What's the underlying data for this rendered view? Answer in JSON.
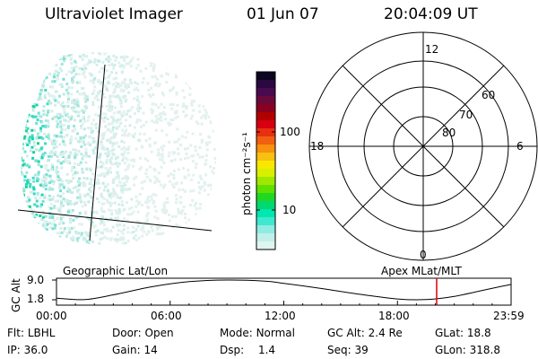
{
  "header": {
    "instrument": "Ultraviolet Imager",
    "date": "01 Jun 07",
    "time": "20:04:09 UT"
  },
  "colorbar": {
    "label": "photon cm⁻²s⁻¹",
    "ticks": [
      "100",
      "10"
    ],
    "colors": [
      "#0c0420",
      "#2a0840",
      "#4a0a50",
      "#6a0a3a",
      "#8a0020",
      "#b00000",
      "#d80010",
      "#e83010",
      "#f06010",
      "#f89010",
      "#f8c010",
      "#f8e800",
      "#d8f000",
      "#a0e800",
      "#60e000",
      "#20d820",
      "#00d870",
      "#00e8b0",
      "#40e8d0",
      "#90ece0",
      "#c0f0ea",
      "#e0f4f0"
    ]
  },
  "polar_grid": {
    "mlt_labels": {
      "top": "12",
      "left": "18",
      "right": "6",
      "bottom": "0"
    },
    "lat_labels": [
      "60",
      "70",
      "80"
    ]
  },
  "orbit_plot": {
    "left_title": "Geographic Lat/Lon",
    "right_title": "Apex MLat/MLT",
    "ylabel": "GC Alt",
    "yticks": [
      "9.0",
      "1.8"
    ],
    "xticks": [
      "00:00",
      "06:00",
      "12:00",
      "18:00",
      "23:59"
    ],
    "marker_color": "#e00000",
    "chart_data": {
      "type": "line",
      "xlabel": "",
      "ylabel": "GC Alt",
      "xrange_hours": [
        0,
        24
      ],
      "ylim": [
        1.8,
        9.0
      ],
      "x_hours": [
        0,
        1.5,
        3,
        5,
        7,
        9,
        11,
        12,
        14,
        16,
        18,
        19.5,
        21,
        23,
        24
      ],
      "y": [
        2.4,
        1.85,
        3.6,
        6.5,
        8.4,
        9.0,
        8.6,
        7.8,
        5.9,
        3.8,
        2.1,
        1.85,
        3.0,
        6.0,
        7.4
      ],
      "marker_hour": 20.07
    }
  },
  "footer": {
    "flt_label": "Flt:",
    "flt_value": "LBHL",
    "door_label": "Door:",
    "door_value": "Open",
    "mode_label": "Mode:",
    "mode_value": "Normal",
    "gcalt_label": "GC Alt:",
    "gcalt_value": "2.4 Re",
    "glat_label": "GLat:",
    "glat_value": "18.8",
    "ip_label": "IP:",
    "ip_value": "36.0",
    "gain_label": "Gain:",
    "gain_value": "14",
    "dsp_label": "Dsp:",
    "dsp_value": "1.4",
    "seq_label": "Seq:",
    "seq_value": "39",
    "glon_label": "GLon:",
    "glon_value": "318.8"
  }
}
